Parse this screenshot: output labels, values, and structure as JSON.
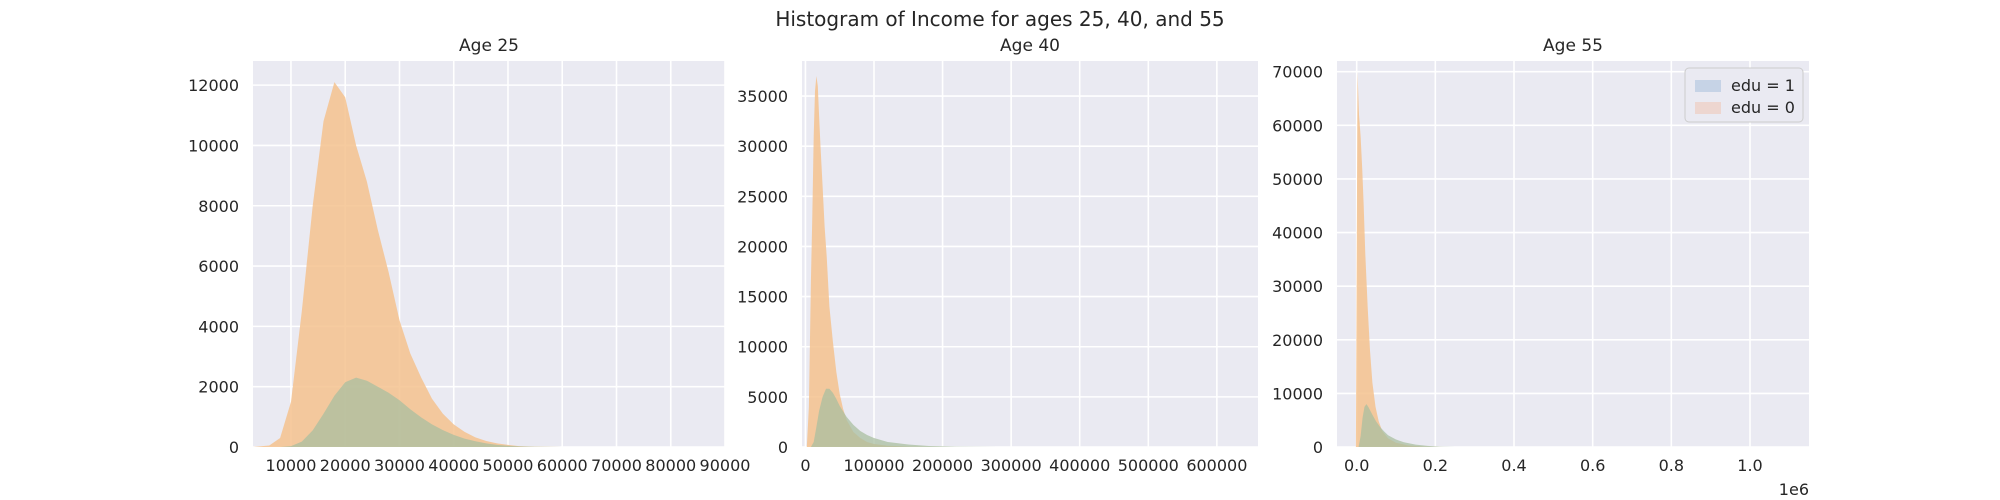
{
  "figure": {
    "title": "Histogram of Income for ages 25, 40, and 55"
  },
  "colors": {
    "edu_0": "#f5c28e",
    "edu_1": "#a9bfa0",
    "legend_edu_1": "#c6d3e6",
    "legend_edu_0": "#edd6d0",
    "axes_background": "#eaeaf2",
    "grid": "#ffffff"
  },
  "legend": {
    "placement": "upper-right",
    "subplot": 2,
    "entries": [
      {
        "label": "edu = 1",
        "series": "edu_1"
      },
      {
        "label": "edu = 0",
        "series": "edu_0"
      }
    ]
  },
  "chart_data": [
    {
      "type": "histogram",
      "title": "Age 25",
      "xlim": [
        3000,
        90000
      ],
      "ylim": [
        0,
        12800
      ],
      "grid": true,
      "xticks": [
        10000,
        20000,
        30000,
        40000,
        50000,
        60000,
        70000,
        80000,
        90000
      ],
      "xtick_labels": [
        "10000",
        "20000",
        "30000",
        "40000",
        "50000",
        "60000",
        "70000",
        "80000",
        "90000"
      ],
      "yticks": [
        0,
        2000,
        4000,
        6000,
        8000,
        10000,
        12000
      ],
      "ytick_labels": [
        "0",
        "2000",
        "4000",
        "6000",
        "8000",
        "10000",
        "12000"
      ],
      "series": [
        {
          "name": "edu = 0",
          "key": "edu_0",
          "x": [
            3000,
            6000,
            8000,
            10000,
            12000,
            14000,
            16000,
            18000,
            20000,
            22000,
            24000,
            26000,
            28000,
            30000,
            32000,
            34000,
            36000,
            38000,
            40000,
            42000,
            44000,
            46000,
            48000,
            50000,
            52000,
            55000,
            60000
          ],
          "y": [
            0,
            50,
            300,
            1500,
            4500,
            8000,
            10800,
            12100,
            11600,
            10000,
            8800,
            7200,
            5800,
            4200,
            3100,
            2300,
            1600,
            1100,
            750,
            500,
            320,
            200,
            120,
            70,
            30,
            10,
            0
          ]
        },
        {
          "name": "edu = 1",
          "key": "edu_1",
          "x": [
            3000,
            8000,
            10000,
            12000,
            14000,
            16000,
            18000,
            20000,
            22000,
            24000,
            26000,
            28000,
            30000,
            32000,
            34000,
            36000,
            38000,
            40000,
            42000,
            44000,
            46000,
            48000,
            50000,
            52000,
            55000,
            60000
          ],
          "y": [
            0,
            0,
            30,
            180,
            550,
            1100,
            1700,
            2150,
            2300,
            2200,
            2000,
            1800,
            1550,
            1250,
            980,
            750,
            560,
            400,
            280,
            190,
            120,
            70,
            40,
            20,
            5,
            0
          ]
        }
      ]
    },
    {
      "type": "histogram",
      "title": "Age 40",
      "xlim": [
        -5000,
        660000
      ],
      "ylim": [
        0,
        38500
      ],
      "grid": true,
      "xticks": [
        0,
        100000,
        200000,
        300000,
        400000,
        500000,
        600000
      ],
      "xtick_labels": [
        "0",
        "100000",
        "200000",
        "300000",
        "400000",
        "500000",
        "600000"
      ],
      "yticks": [
        0,
        5000,
        10000,
        15000,
        20000,
        25000,
        30000,
        35000
      ],
      "ytick_labels": [
        "0",
        "5000",
        "10000",
        "15000",
        "20000",
        "25000",
        "30000",
        "35000"
      ],
      "series": [
        {
          "name": "edu = 0",
          "key": "edu_0",
          "x": [
            -5000,
            2000,
            5000,
            8000,
            10000,
            12000,
            14000,
            16000,
            18000,
            20000,
            22000,
            25000,
            28000,
            31000,
            35000,
            40000,
            45000,
            50000,
            55000,
            60000,
            70000,
            80000,
            90000,
            100000,
            120000,
            150000,
            180000,
            220000
          ],
          "y": [
            0,
            0,
            4000,
            16500,
            23000,
            31000,
            35500,
            37000,
            36000,
            33000,
            30000,
            26000,
            22000,
            19000,
            14000,
            10500,
            7500,
            5300,
            3800,
            2700,
            1500,
            900,
            500,
            300,
            130,
            40,
            10,
            0
          ]
        },
        {
          "name": "edu = 1",
          "key": "edu_1",
          "x": [
            -5000,
            8000,
            12000,
            16000,
            20000,
            25000,
            30000,
            35000,
            40000,
            45000,
            50000,
            60000,
            70000,
            80000,
            90000,
            100000,
            120000,
            150000,
            180000,
            220000,
            280000
          ],
          "y": [
            0,
            0,
            500,
            2000,
            3600,
            5000,
            5800,
            5800,
            5400,
            4800,
            4100,
            3000,
            2200,
            1600,
            1200,
            900,
            500,
            250,
            100,
            30,
            0
          ]
        }
      ]
    },
    {
      "type": "histogram",
      "title": "Age 55",
      "xlim": [
        -50000,
        1150000
      ],
      "ylim": [
        0,
        72000
      ],
      "grid": true,
      "x_scale_label": "1e6",
      "xticks": [
        0,
        200000,
        400000,
        600000,
        800000,
        1000000
      ],
      "xtick_labels": [
        "0.0",
        "0.2",
        "0.4",
        "0.6",
        "0.8",
        "1.0"
      ],
      "yticks": [
        0,
        10000,
        20000,
        30000,
        40000,
        50000,
        60000,
        70000
      ],
      "ytick_labels": [
        "0",
        "10000",
        "20000",
        "30000",
        "40000",
        "50000",
        "60000",
        "70000"
      ],
      "series": [
        {
          "name": "edu = 0",
          "key": "edu_0",
          "x": [
            -50000,
            -2000,
            2000,
            6000,
            10000,
            14000,
            18000,
            22000,
            28000,
            34000,
            40000,
            48000,
            56000,
            65000,
            80000,
            100000,
            130000,
            170000,
            220000
          ],
          "y": [
            0,
            0,
            70000,
            62000,
            58000,
            52000,
            45000,
            36000,
            26000,
            18000,
            12000,
            7500,
            4800,
            3000,
            1600,
            800,
            300,
            80,
            0
          ]
        },
        {
          "name": "edu = 1",
          "key": "edu_1",
          "x": [
            -50000,
            5000,
            10000,
            15000,
            20000,
            25000,
            30000,
            40000,
            50000,
            60000,
            70000,
            80000,
            100000,
            120000,
            150000,
            180000,
            210000,
            250000
          ],
          "y": [
            0,
            0,
            2000,
            5500,
            7500,
            8000,
            7400,
            6000,
            4700,
            3700,
            2900,
            2200,
            1400,
            900,
            450,
            200,
            60,
            0
          ]
        }
      ]
    }
  ]
}
